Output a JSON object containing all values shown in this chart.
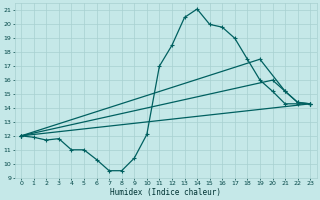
{
  "xlabel": "Humidex (Indice chaleur)",
  "xlim": [
    -0.5,
    23.5
  ],
  "ylim": [
    9,
    21.5
  ],
  "xticks": [
    0,
    1,
    2,
    3,
    4,
    5,
    6,
    7,
    8,
    9,
    10,
    11,
    12,
    13,
    14,
    15,
    16,
    17,
    18,
    19,
    20,
    21,
    22,
    23
  ],
  "yticks": [
    9,
    10,
    11,
    12,
    13,
    14,
    15,
    16,
    17,
    18,
    19,
    20,
    21
  ],
  "bg_color": "#c5e8e8",
  "grid_color": "#a8d0d0",
  "line_color": "#006060",
  "curves": [
    {
      "x": [
        0,
        1,
        2,
        3,
        4,
        5,
        6,
        7,
        8,
        9,
        10,
        11,
        12,
        13,
        14,
        15,
        16,
        17,
        18,
        19,
        20,
        21,
        22,
        23
      ],
      "y": [
        12,
        11.9,
        11.7,
        11.8,
        11.0,
        11.0,
        10.3,
        9.5,
        9.5,
        10.4,
        12.1,
        17.0,
        18.5,
        20.5,
        21.1,
        20.0,
        19.8,
        19.0,
        17.5,
        16.0,
        15.2,
        14.3,
        14.3,
        14.3
      ]
    },
    {
      "x": [
        0,
        23
      ],
      "y": [
        12,
        14.3
      ]
    },
    {
      "x": [
        0,
        20,
        21,
        22,
        23
      ],
      "y": [
        12,
        16.0,
        15.2,
        14.4,
        14.3
      ]
    },
    {
      "x": [
        0,
        19,
        21,
        22,
        23
      ],
      "y": [
        12,
        17.5,
        15.2,
        14.4,
        14.3
      ]
    }
  ]
}
